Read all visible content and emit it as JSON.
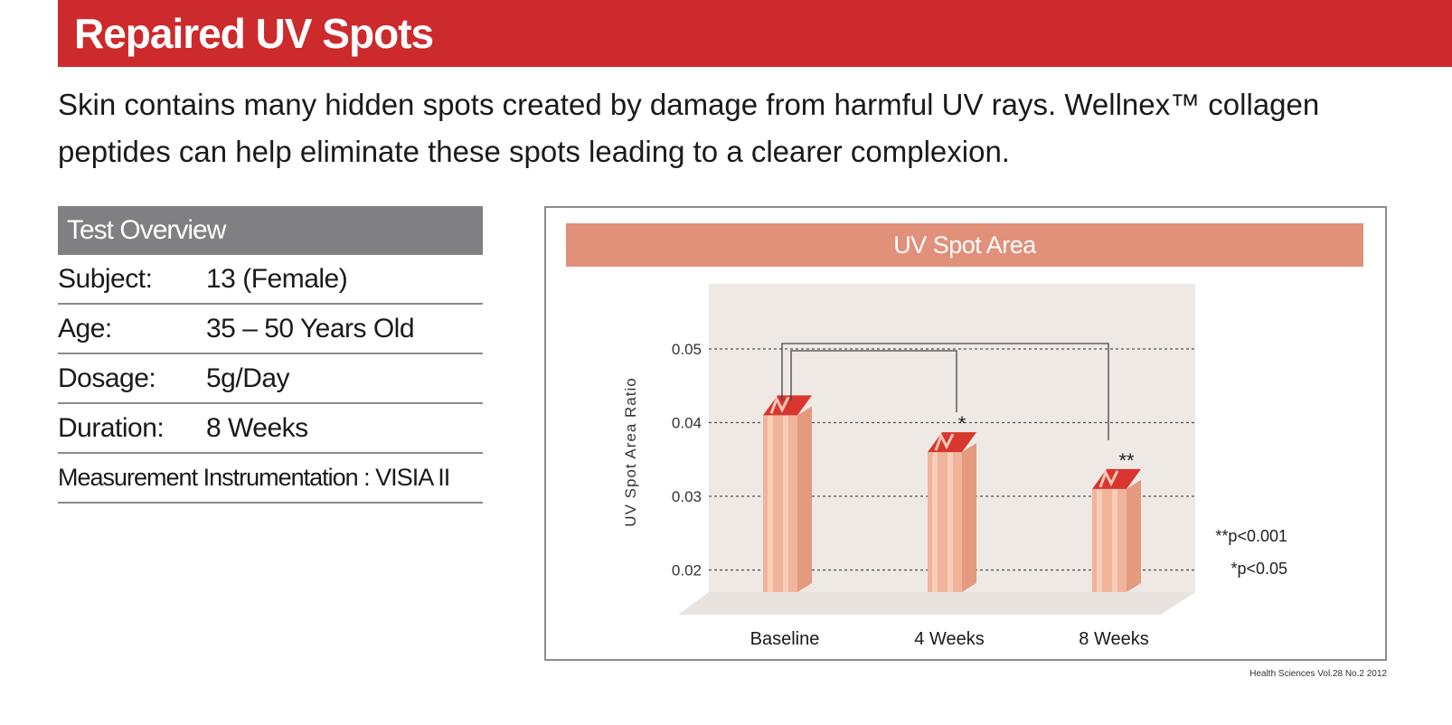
{
  "header": {
    "title": "Repaired UV Spots"
  },
  "intro": {
    "text": "Skin contains many hidden spots created by damage from harmful UV rays. Wellnex™ collagen peptides can help eliminate these spots leading to a clearer complexion."
  },
  "overview": {
    "title": "Test Overview",
    "rows": [
      {
        "label": "Subject:",
        "value": "13 (Female)"
      },
      {
        "label": "Age:",
        "value": "35 – 50 Years Old"
      },
      {
        "label": "Dosage:",
        "value": "5g/Day"
      },
      {
        "label": "Duration:",
        "value": "8 Weeks"
      }
    ],
    "measurement": "Measurement Instrumentation : VISIA II"
  },
  "chart_data": {
    "type": "bar",
    "title": "UV Spot Area",
    "ylabel": "UV Spot Area Ratio",
    "xlabel": "",
    "categories": [
      "Baseline",
      "4 Weeks",
      "8 Weeks"
    ],
    "values": [
      0.041,
      0.036,
      0.031
    ],
    "significance_marks": [
      "",
      "*",
      "**"
    ],
    "y_ticks": [
      "0.02",
      "0.03",
      "0.04",
      "0.05"
    ],
    "ylim": [
      0.017,
      0.05
    ],
    "grid": true,
    "legend": [
      "**p<0.001",
      "*p<0.05"
    ],
    "colors": {
      "bar_front": "#f0b49a",
      "bar_stripe": "#f7cdb8",
      "bar_side": "#e39a7e",
      "bar_top": "#d8362e",
      "floor": "#e9e3df"
    }
  },
  "source": "Health Sciences Vol.28 No.2 2012"
}
